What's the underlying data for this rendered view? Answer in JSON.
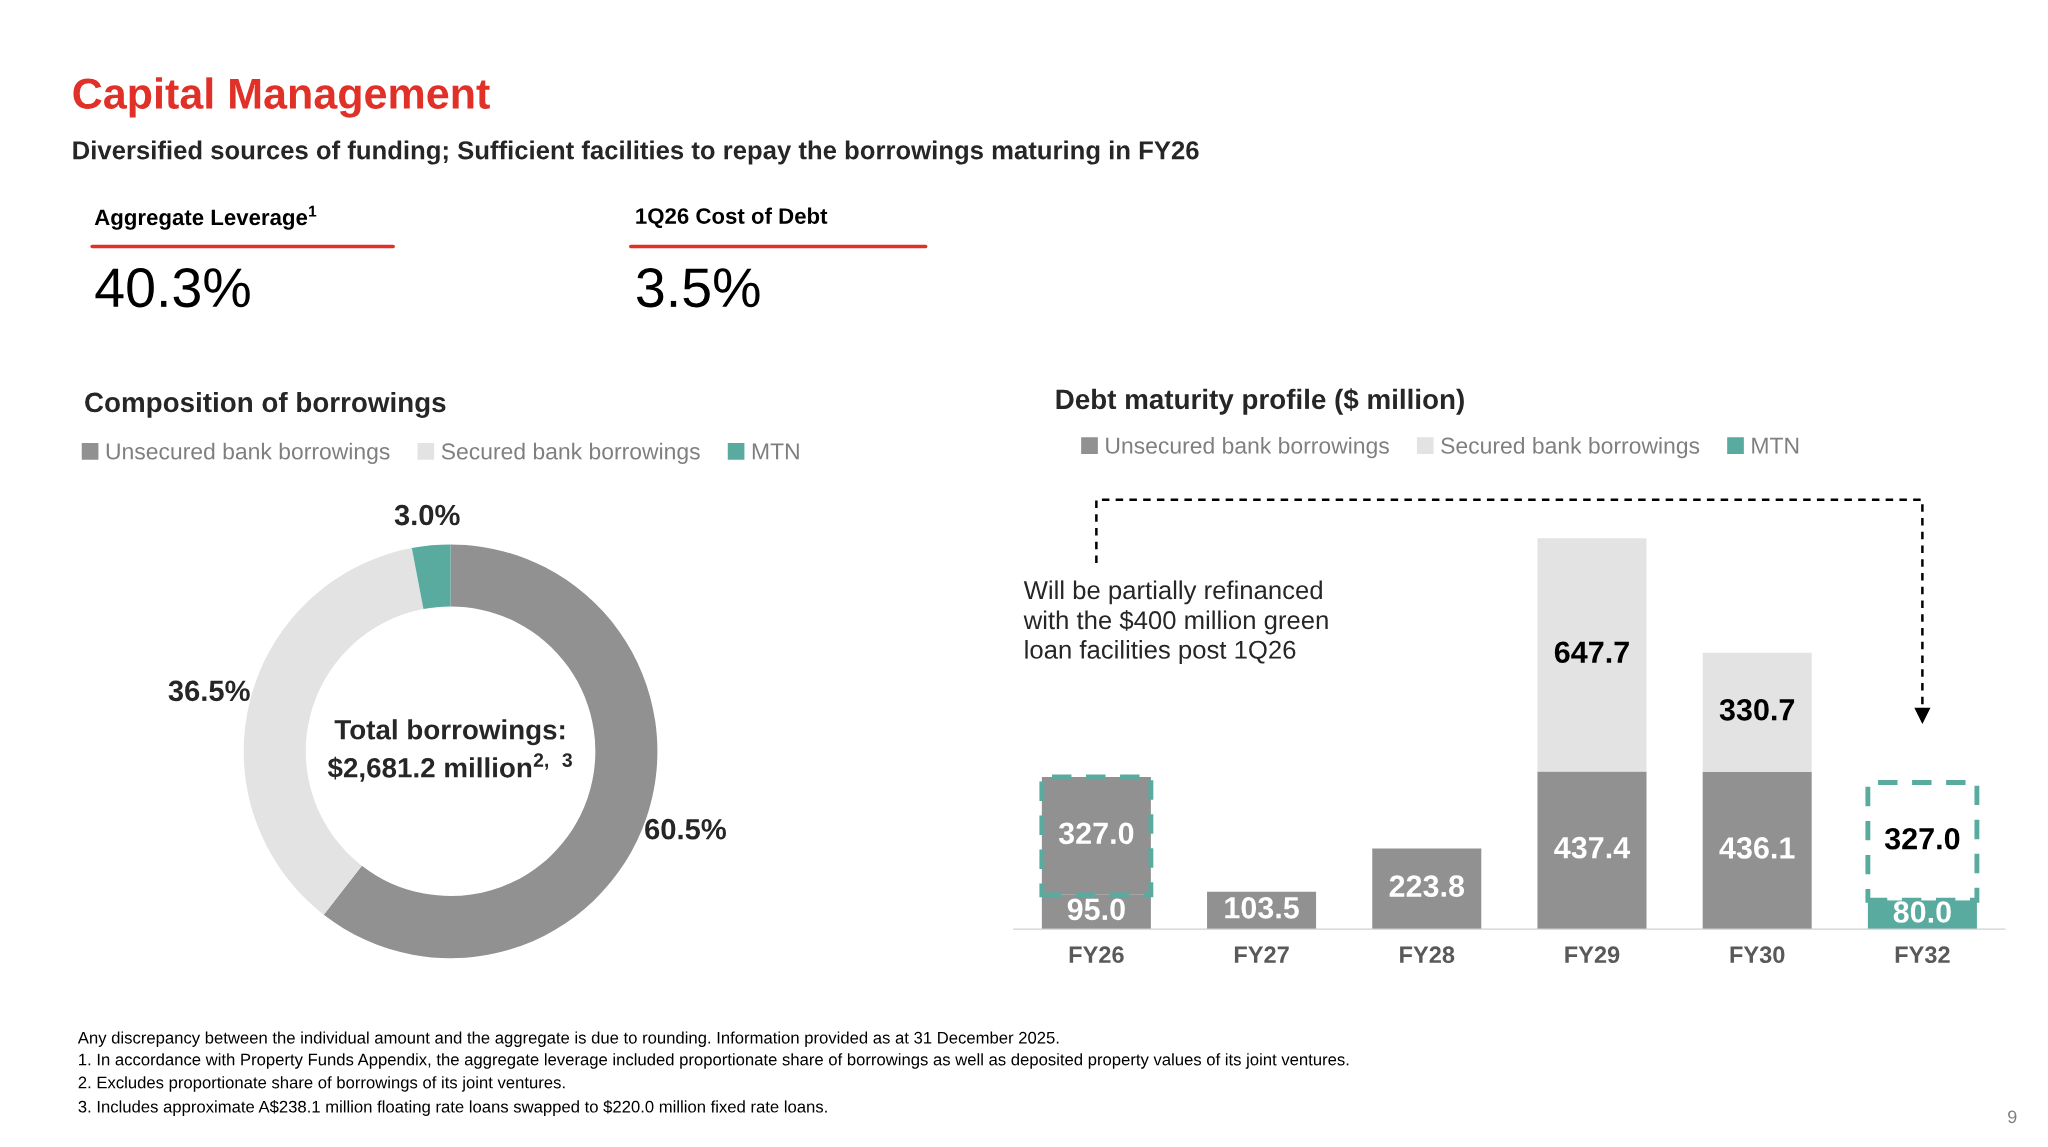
{
  "chart_data": [
    {
      "type": "other",
      "title": "Capital Management",
      "subtitle": "Diversified sources of funding; Sufficient facilities to repay the borrowings maturing in FY26",
      "annotations": [
        "Aggregate Leverage$^{1}$",
        "40.3%",
        "1Q26 Cost of Debt",
        "3.5%",
        "Any discrepancy between the individual amount and the aggregate is due to rounding. Information provided as at 31 December 2025.",
        "1. In accordance with Property Funds Appendix, the aggregate leverage included proportionate share of borrowings as well as deposited property values of its joint ventures.",
        "2. Excludes proportionate share of borrowings of its joint ventures.",
        "3. Includes approximate A$238.1 million floating rate loans swapped to $220.0 million fixed rate loans.",
        "9"
      ]
    },
    {
      "type": "donut",
      "title": "Composition of borrowings",
      "categories": [
        "Unsecured bank borrowings",
        "Secured bank borrowings",
        "MTN"
      ],
      "values": [
        60.5,
        36.5,
        3.0
      ],
      "colors": [
        "#919191",
        "#e3e3e3",
        "#5aab9f"
      ],
      "value_labels": [
        "60.5%",
        "36.5%",
        "3.0%"
      ],
      "annotations": [
        "Total borrowings:\n$2,681.2 million$^{2, 3}$"
      ],
      "legend": "top"
    },
    {
      "type": "bar",
      "title": "Debt maturity profile ($ million)",
      "stacked": true,
      "categories": [
        "FY26",
        "FY27",
        "FY28",
        "FY29",
        "FY30",
        "FY32"
      ],
      "series": [
        {
          "name": "Unsecured bank borrowings",
          "color": "#919191",
          "values": [
            95.0,
            103.5,
            223.8,
            437.4,
            436.1,
            null
          ],
          "value_labels": [
            "95.0",
            "103.5",
            "223.8",
            "437.4",
            "436.1",
            null
          ]
        },
        {
          "color": "#919191",
          "values": [
            327.0,
            null,
            null,
            null,
            null,
            null
          ],
          "value_labels": [
            "327.0",
            null,
            null,
            null,
            null,
            null
          ],
          "line_style": "dashed"
        },
        {
          "name": "Secured bank borrowings",
          "color": "#e3e3e3",
          "values": [
            null,
            null,
            null,
            647.7,
            330.7,
            null
          ],
          "value_labels": [
            null,
            null,
            null,
            "647.7",
            "330.7",
            null
          ]
        },
        {
          "name": "MTN",
          "color": "#5aab9f",
          "values": [
            null,
            null,
            null,
            null,
            null,
            80.0
          ],
          "value_labels": [
            null,
            null,
            null,
            null,
            null,
            "80.0"
          ]
        },
        {
          "color": "#ffffff",
          "values": [
            null,
            null,
            null,
            null,
            null,
            327.0
          ],
          "value_labels": [
            null,
            null,
            null,
            null,
            null,
            "327.0"
          ],
          "line_style": "dashed"
        }
      ],
      "legend": "top",
      "annotations": [
        "Will be partially refinanced\nwith the $400 million green\nloan facilities post 1Q26"
      ]
    }
  ]
}
